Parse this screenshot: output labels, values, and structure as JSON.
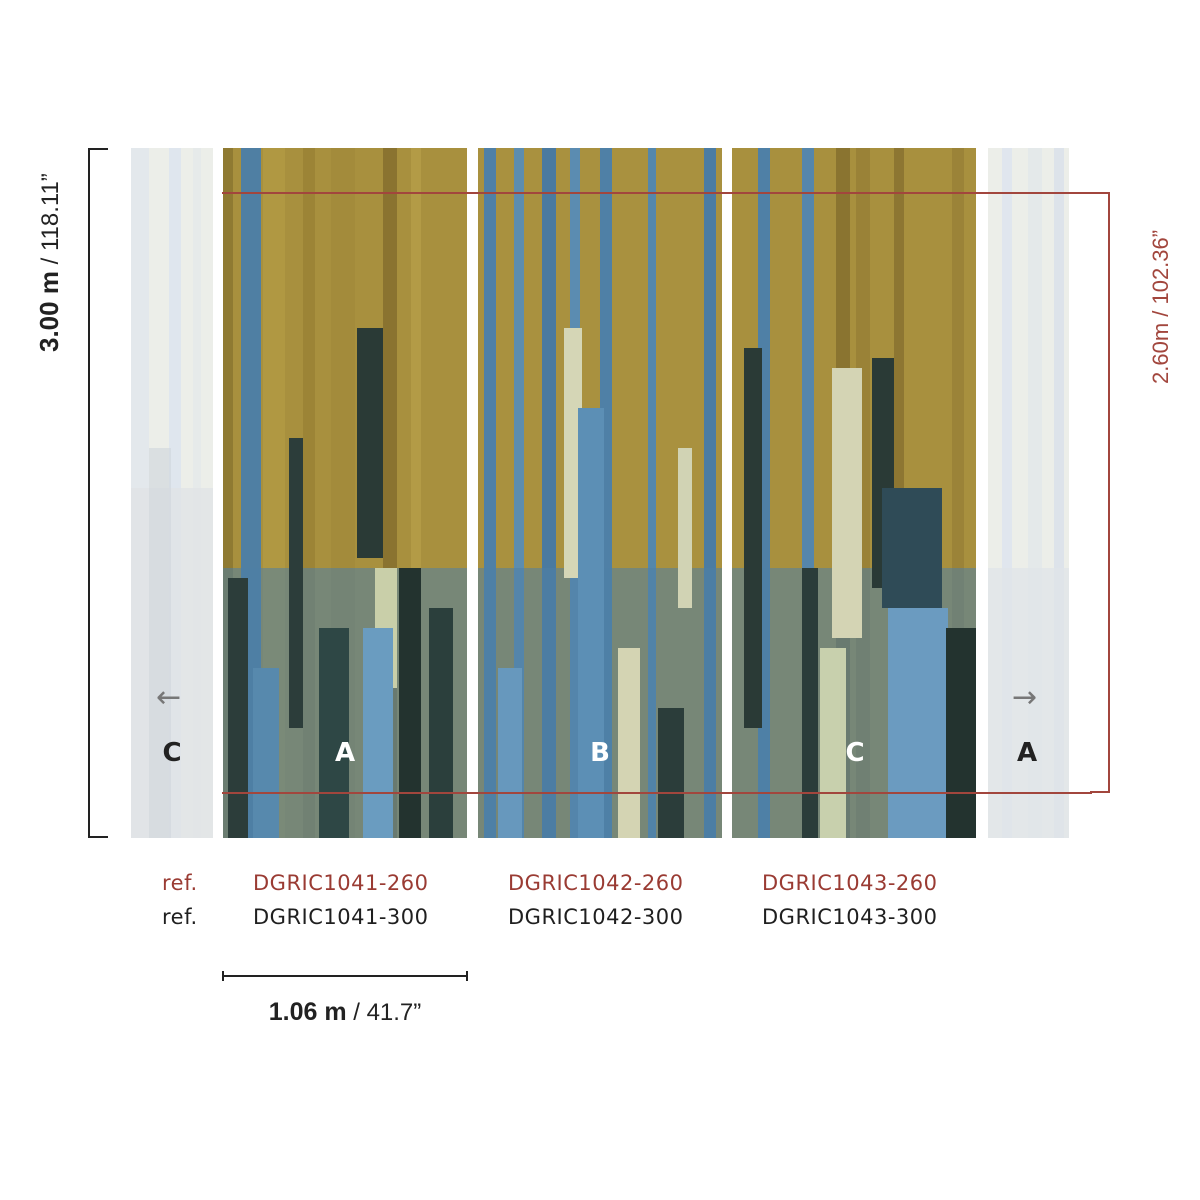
{
  "dimensions": {
    "height_bold": "3.00 m",
    "height_rest": " / 118.11”",
    "crop_height": "2.60m / 102.36”",
    "width_bold": "1.06 m",
    "width_rest": " / 41.7”"
  },
  "panels": [
    {
      "letter": "A"
    },
    {
      "letter": "B"
    },
    {
      "letter": "C"
    }
  ],
  "repeat": {
    "left_letter": "C",
    "right_letter": "A",
    "left_arrow_icon": "arrow-left-icon",
    "right_arrow_icon": "arrow-right-icon"
  },
  "refs": {
    "prefix_260": "ref.",
    "prefix_300": "ref.",
    "codes_260": [
      "DGRIC1041-260",
      "DGRIC1042-260",
      "DGRIC1043-260"
    ],
    "codes_300": [
      "DGRIC1041-300",
      "DGRIC1042-300",
      "DGRIC1043-300"
    ]
  },
  "colors": {
    "ochre": "#a08a3a",
    "blue": "#5a86a8",
    "dark": "#2a3a38",
    "cream": "#d8d6bf",
    "accent_red": "#a2463d"
  }
}
